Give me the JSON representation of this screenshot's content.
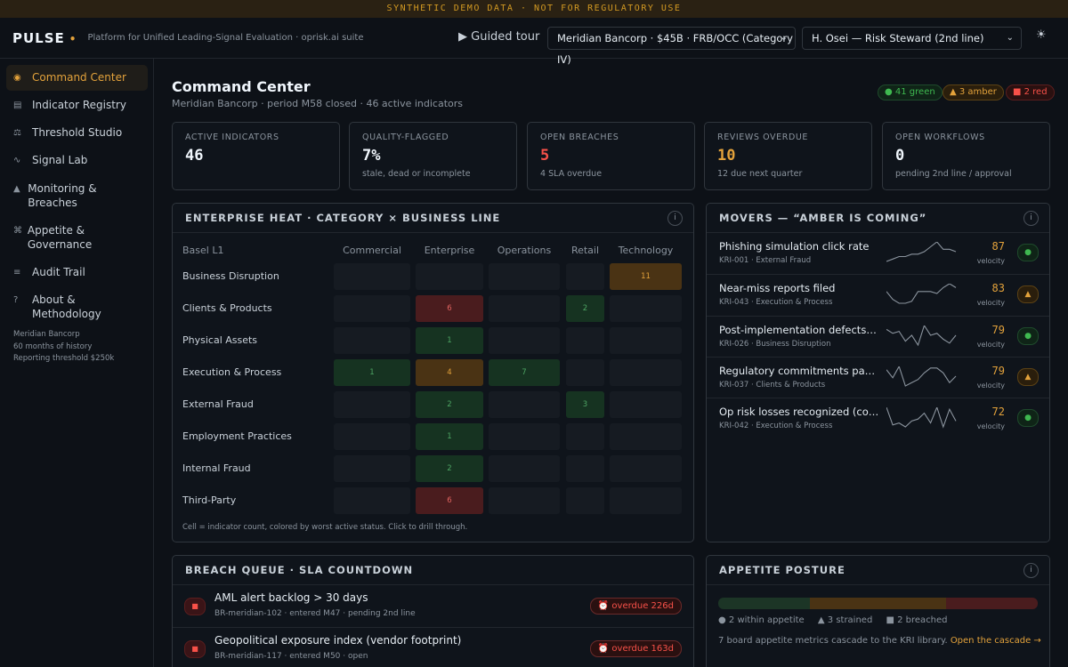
{
  "banner": "SYNTHETIC DEMO DATA · NOT FOR REGULATORY USE",
  "app": {
    "logo": "PULSE",
    "tagline": "Platform for Unified Leading-Signal Evaluation · oprisk.ai suite",
    "guided_tour": "▶ Guided tour",
    "entity_select": "Meridian Bancorp · $45B · FRB/OCC (Category IV)",
    "user_select": "H. Osei — Risk Steward (2nd line)",
    "theme_icon": "☀"
  },
  "sidebar": {
    "items": [
      {
        "icon": "◉",
        "label": "Command Center"
      },
      {
        "icon": "▤",
        "label": "Indicator Registry"
      },
      {
        "icon": "⚖",
        "label": "Threshold Studio"
      },
      {
        "icon": "∿",
        "label": "Signal Lab"
      },
      {
        "icon": "▲",
        "label": "Monitoring & Breaches"
      },
      {
        "icon": "⌘",
        "label": "Appetite & Governance"
      },
      {
        "icon": "≡",
        "label": "Audit Trail"
      },
      {
        "icon": "?",
        "label": "About & Methodology"
      }
    ],
    "meta": [
      "Meridian Bancorp",
      "60 months of history",
      "Reporting threshold $250k"
    ]
  },
  "header": {
    "title": "Command Center",
    "subtitle": "Meridian Bancorp · period M58 closed · 46 active indicators",
    "pills": {
      "green": "● 41 green",
      "amber": "▲ 3 amber",
      "red": "■ 2 red"
    }
  },
  "kpis": [
    {
      "label": "ACTIVE INDICATORS",
      "value": "46",
      "note": "",
      "color": "default"
    },
    {
      "label": "QUALITY-FLAGGED",
      "value": "7%",
      "note": "stale, dead or incomplete",
      "color": "default"
    },
    {
      "label": "OPEN BREACHES",
      "value": "5",
      "note": "4 SLA overdue",
      "color": "red"
    },
    {
      "label": "REVIEWS OVERDUE",
      "value": "10",
      "note": "12 due next quarter",
      "color": "amber"
    },
    {
      "label": "OPEN WORKFLOWS",
      "value": "0",
      "note": "pending 2nd line / approval",
      "color": "default"
    }
  ],
  "heatmap": {
    "title": "ENTERPRISE HEAT · CATEGORY × BUSINESS LINE",
    "corner": "Basel L1",
    "columns": [
      "Commercial",
      "Enterprise",
      "Operations",
      "Retail",
      "Technology"
    ],
    "rows": [
      {
        "label": "Business Disruption",
        "cells": [
          {
            "v": "",
            "s": ""
          },
          {
            "v": "",
            "s": ""
          },
          {
            "v": "",
            "s": ""
          },
          {
            "v": "",
            "s": ""
          },
          {
            "v": "11",
            "s": "a"
          }
        ]
      },
      {
        "label": "Clients & Products",
        "cells": [
          {
            "v": "",
            "s": ""
          },
          {
            "v": "6",
            "s": "r"
          },
          {
            "v": "",
            "s": ""
          },
          {
            "v": "2",
            "s": "g"
          },
          {
            "v": "",
            "s": ""
          }
        ]
      },
      {
        "label": "Physical Assets",
        "cells": [
          {
            "v": "",
            "s": ""
          },
          {
            "v": "1",
            "s": "g"
          },
          {
            "v": "",
            "s": ""
          },
          {
            "v": "",
            "s": ""
          },
          {
            "v": "",
            "s": ""
          }
        ]
      },
      {
        "label": "Execution & Process",
        "cells": [
          {
            "v": "1",
            "s": "g"
          },
          {
            "v": "4",
            "s": "a"
          },
          {
            "v": "7",
            "s": "g"
          },
          {
            "v": "",
            "s": ""
          },
          {
            "v": "",
            "s": ""
          }
        ]
      },
      {
        "label": "External Fraud",
        "cells": [
          {
            "v": "",
            "s": ""
          },
          {
            "v": "2",
            "s": "g"
          },
          {
            "v": "",
            "s": ""
          },
          {
            "v": "3",
            "s": "g"
          },
          {
            "v": "",
            "s": ""
          }
        ]
      },
      {
        "label": "Employment Practices",
        "cells": [
          {
            "v": "",
            "s": ""
          },
          {
            "v": "1",
            "s": "g"
          },
          {
            "v": "",
            "s": ""
          },
          {
            "v": "",
            "s": ""
          },
          {
            "v": "",
            "s": ""
          }
        ]
      },
      {
        "label": "Internal Fraud",
        "cells": [
          {
            "v": "",
            "s": ""
          },
          {
            "v": "2",
            "s": "g"
          },
          {
            "v": "",
            "s": ""
          },
          {
            "v": "",
            "s": ""
          },
          {
            "v": "",
            "s": ""
          }
        ]
      },
      {
        "label": "Third-Party",
        "cells": [
          {
            "v": "",
            "s": ""
          },
          {
            "v": "6",
            "s": "r"
          },
          {
            "v": "",
            "s": ""
          },
          {
            "v": "",
            "s": ""
          },
          {
            "v": "",
            "s": ""
          }
        ]
      }
    ],
    "footnote": "Cell = indicator count, colored by worst active status. Click to drill through."
  },
  "movers": {
    "title": "MOVERS — “AMBER IS COMING”",
    "items": [
      {
        "name": "Phishing simulation click rate",
        "sub": "KRI-001 · External Fraud",
        "score": "87",
        "vel": "velocity",
        "badge": "●",
        "status": "g",
        "spark": [
          5,
          6,
          7,
          7,
          8,
          8,
          9,
          11,
          13,
          10,
          10,
          9
        ]
      },
      {
        "name": "Near-miss reports filed",
        "sub": "KRI-043 · Execution & Process",
        "score": "83",
        "vel": "velocity",
        "badge": "▲",
        "status": "a",
        "spark": [
          12,
          8,
          6,
          6,
          7,
          12,
          12,
          12,
          11,
          14,
          16,
          14
        ]
      },
      {
        "name": "Post-implementation defects p...",
        "sub": "KRI-026 · Business Disruption",
        "score": "79",
        "vel": "velocity",
        "badge": "●",
        "status": "g",
        "spark": [
          12,
          10,
          11,
          6,
          9,
          4,
          14,
          9,
          10,
          7,
          5,
          9
        ]
      },
      {
        "name": "Regulatory commitments past ...",
        "sub": "KRI-037 · Clients & Products",
        "score": "79",
        "vel": "velocity",
        "badge": "▲",
        "status": "a",
        "spark": [
          14,
          9,
          16,
          4,
          6,
          8,
          12,
          15,
          15,
          12,
          6,
          10
        ]
      },
      {
        "name": "Op risk losses recognized (cou...",
        "sub": "KRI-042 · Execution & Process",
        "score": "72",
        "vel": "velocity",
        "badge": "●",
        "status": "g",
        "spark": [
          14,
          5,
          6,
          4,
          7,
          8,
          11,
          6,
          14,
          4,
          13,
          7
        ]
      }
    ]
  },
  "breach_queue": {
    "title": "BREACH QUEUE · SLA COUNTDOWN",
    "items": [
      {
        "title": "AML alert backlog > 30 days",
        "sub": "BR-meridian-102 · entered M47 · pending 2nd line",
        "sla": "⏰ overdue 226d"
      },
      {
        "title": "Geopolitical exposure index (vendor footprint)",
        "sub": "BR-meridian-117 · entered M50 · open",
        "sla": "⏰ overdue 163d"
      }
    ]
  },
  "appetite": {
    "title": "APPETITE POSTURE",
    "segments": [
      {
        "count": 2,
        "color": "#1c3526"
      },
      {
        "count": 3,
        "color": "#4a3314"
      },
      {
        "count": 2,
        "color": "#4a1c1e"
      }
    ],
    "legend": {
      "within": "● 2 within appetite",
      "strained": "▲ 3 strained",
      "breached": "■ 2 breached"
    },
    "desc": "7 board appetite metrics cascade to the KRI library.",
    "link": "Open the cascade →"
  }
}
